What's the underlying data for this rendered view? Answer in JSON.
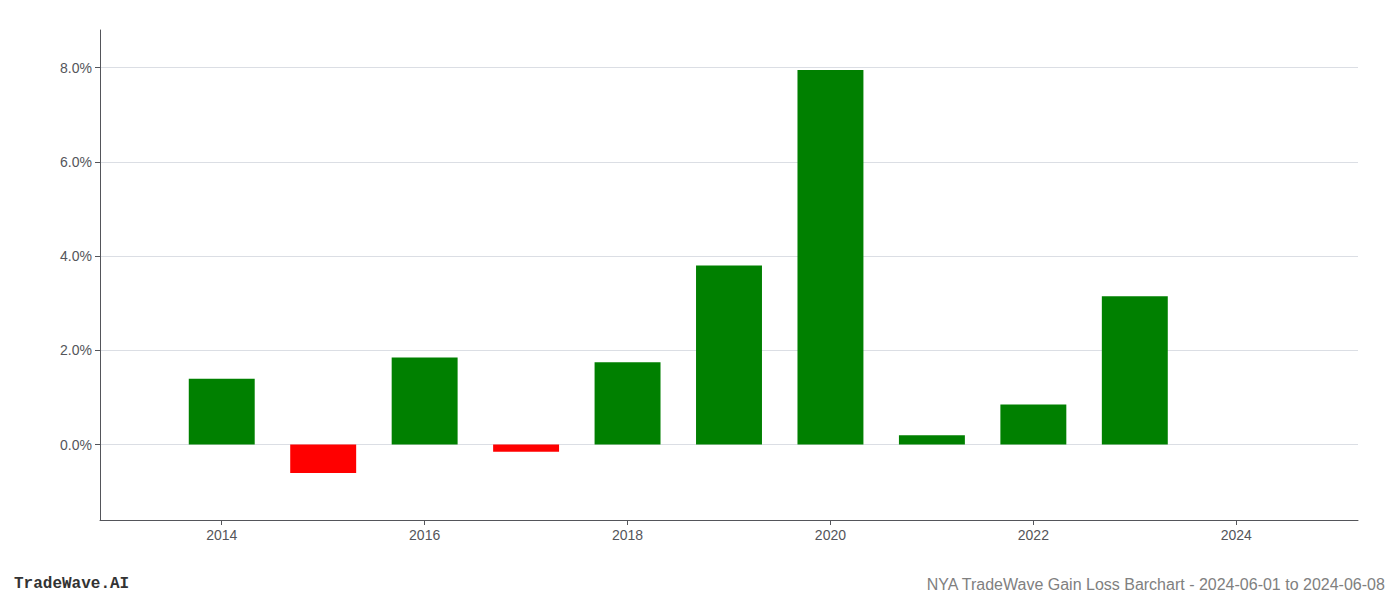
{
  "chart_data": {
    "type": "bar",
    "x": [
      2014,
      2015,
      2016,
      2017,
      2018,
      2019,
      2020,
      2021,
      2022,
      2023
    ],
    "values": [
      0.014,
      -0.006,
      0.0185,
      -0.0015,
      0.0175,
      0.038,
      0.0795,
      0.002,
      0.0085,
      0.0315
    ],
    "colors": [
      "#008000",
      "#ff0000",
      "#008000",
      "#ff0000",
      "#008000",
      "#008000",
      "#008000",
      "#008000",
      "#008000",
      "#008000"
    ],
    "xlim": [
      2012.8,
      2025.2
    ],
    "xticks": [
      2014,
      2016,
      2018,
      2020,
      2022,
      2024
    ],
    "ylim": [
      -0.016,
      0.088
    ],
    "yticks": [
      {
        "value": 0.0,
        "label": "0.0%"
      },
      {
        "value": 0.02,
        "label": "2.0%"
      },
      {
        "value": 0.04,
        "label": "4.0%"
      },
      {
        "value": 0.06,
        "label": "6.0%"
      },
      {
        "value": 0.08,
        "label": "8.0%"
      }
    ],
    "grid": true,
    "annotations": [
      "TradeWave.AI",
      "NYA TradeWave Gain Loss Barchart - 2024-06-01 to 2024-06-08"
    ]
  }
}
